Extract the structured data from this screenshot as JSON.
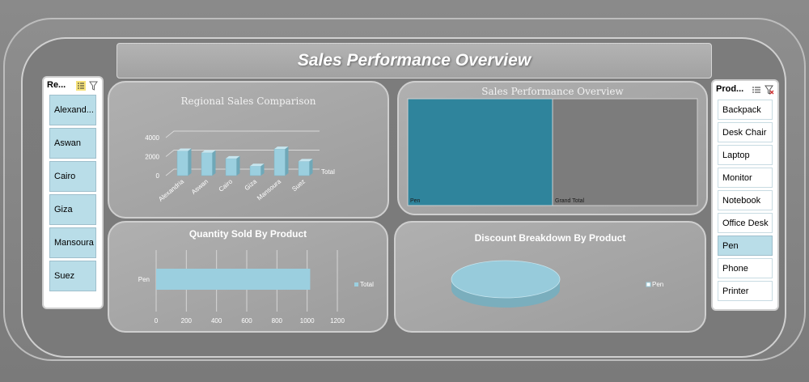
{
  "title": "Sales Performance Overview",
  "region_slicer": {
    "header": "Re...",
    "items": [
      "Alexand...",
      "Aswan",
      "Cairo",
      "Giza",
      "Mansoura",
      "Suez"
    ]
  },
  "product_slicer": {
    "header": "Prod...",
    "items": [
      "Backpack",
      "Desk Chair",
      "Laptop",
      "Monitor",
      "Notebook",
      "Office Desk",
      "Pen",
      "Phone",
      "Printer"
    ],
    "selected": "Pen"
  },
  "colors": {
    "accent": "#9bcfdf",
    "treemap_pen": "#2f849c",
    "treemap_total": "#7c7c7c"
  },
  "chart_data": [
    {
      "type": "bar",
      "title": "Regional Sales Comparison",
      "categories": [
        "Alexandria",
        "Aswan",
        "Cairo",
        "Giza",
        "Mansoura",
        "Suez"
      ],
      "series": [
        {
          "name": "Total",
          "values": [
            2600,
            2400,
            1800,
            1000,
            2800,
            1500
          ]
        }
      ],
      "yticks": [
        "4000",
        "2000",
        "0"
      ],
      "ylim": [
        0,
        4000
      ],
      "legend": "Total"
    },
    {
      "type": "treemap",
      "title": "Sales Performance Overview",
      "labels": [
        "Pen",
        "Grand Total"
      ],
      "values": [
        50,
        50
      ]
    },
    {
      "type": "bar",
      "title": "Quantity Sold By Product",
      "categories": [
        "Pen"
      ],
      "series": [
        {
          "name": "Total",
          "values": [
            1020
          ]
        }
      ],
      "xticks": [
        "0",
        "200",
        "400",
        "600",
        "800",
        "1000",
        "1200"
      ],
      "xlim": [
        0,
        1200
      ],
      "legend": "Total"
    },
    {
      "type": "pie",
      "title": "Discount Breakdown By Product",
      "labels": [
        "Pen"
      ],
      "values": [
        100
      ],
      "legend": "Pen"
    }
  ]
}
